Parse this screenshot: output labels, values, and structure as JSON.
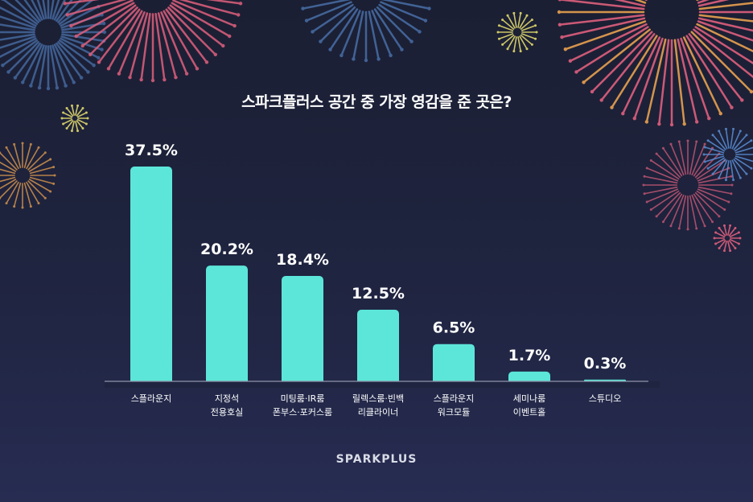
{
  "brand_logo": "SPARKPLUS",
  "colors": {
    "bar": "#5ce6d9",
    "text": "#ffffff",
    "baseline": "#8f93a8",
    "firework_pink": "#e0607e",
    "firework_orange": "#e9a14f",
    "firework_yellow": "#d8d06a",
    "firework_blue": "#5b8fd6"
  },
  "chart_data": {
    "type": "bar",
    "title": "스파크플러스 공간 중 가장 영감을 준 곳은?",
    "categories": [
      [
        "스플라운지"
      ],
      [
        "지정석",
        "전용호실"
      ],
      [
        "미팅룸·IR룸",
        "폰부스·포커스룸"
      ],
      [
        "릴렉스룸·빈백",
        "리클라이너"
      ],
      [
        "스플라운지",
        "워크모듈"
      ],
      [
        "세미나룸",
        "이벤트홀"
      ],
      [
        "스튜디오"
      ]
    ],
    "values": [
      37.5,
      20.2,
      18.4,
      12.5,
      6.5,
      1.7,
      0.3
    ],
    "value_labels": [
      "37.5%",
      "20.2%",
      "18.4%",
      "12.5%",
      "6.5%",
      "1.7%",
      "0.3%"
    ],
    "ylim": [
      0,
      37.5
    ],
    "grid": false,
    "legend": "none"
  }
}
